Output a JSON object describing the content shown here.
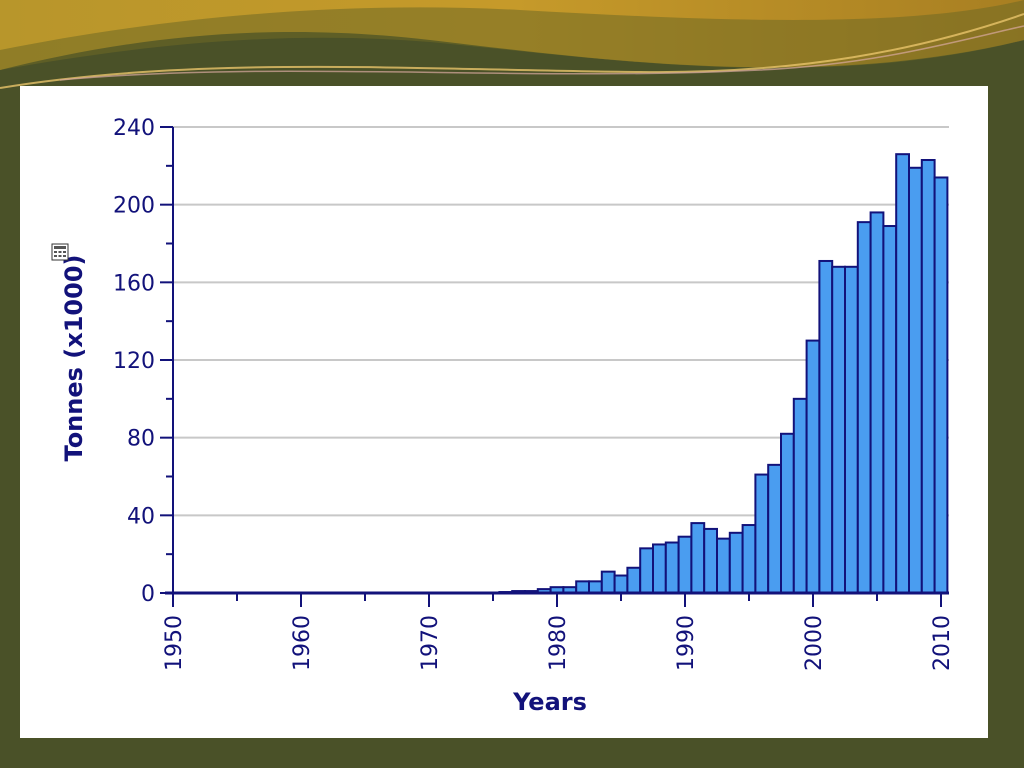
{
  "chart_data": {
    "type": "bar",
    "xlabel": "Years",
    "ylabel": "Tonnes (x1000)",
    "ylim": [
      0,
      240
    ],
    "xlim": [
      1950,
      2010
    ],
    "y_ticks": [
      "0",
      "40",
      "80",
      "120",
      "160",
      "200",
      "240"
    ],
    "x_ticks": [
      "1950",
      "1960",
      "1970",
      "1980",
      "1990",
      "2000",
      "2010"
    ],
    "grid": true,
    "x": [
      1976,
      1977,
      1978,
      1979,
      1980,
      1981,
      1982,
      1983,
      1984,
      1985,
      1986,
      1987,
      1988,
      1989,
      1990,
      1991,
      1992,
      1993,
      1994,
      1995,
      1996,
      1997,
      1998,
      1999,
      2000,
      2001,
      2002,
      2003,
      2004,
      2005,
      2006,
      2007,
      2008,
      2009,
      2010
    ],
    "values": [
      0.5,
      1,
      1,
      2,
      3,
      3,
      6,
      6,
      11,
      9,
      13,
      23,
      25,
      26,
      29,
      36,
      33,
      28,
      31,
      35,
      61,
      66,
      82,
      100,
      130,
      171,
      168,
      168,
      191,
      196,
      189,
      226,
      219,
      223,
      214
    ],
    "bar_color": "#4a9df0",
    "bar_edge_color": "#12127a"
  },
  "colors": {
    "background": "#4a5128",
    "panel": "#ffffff",
    "axis": "#12127a",
    "grid": "#c8c8c8"
  }
}
